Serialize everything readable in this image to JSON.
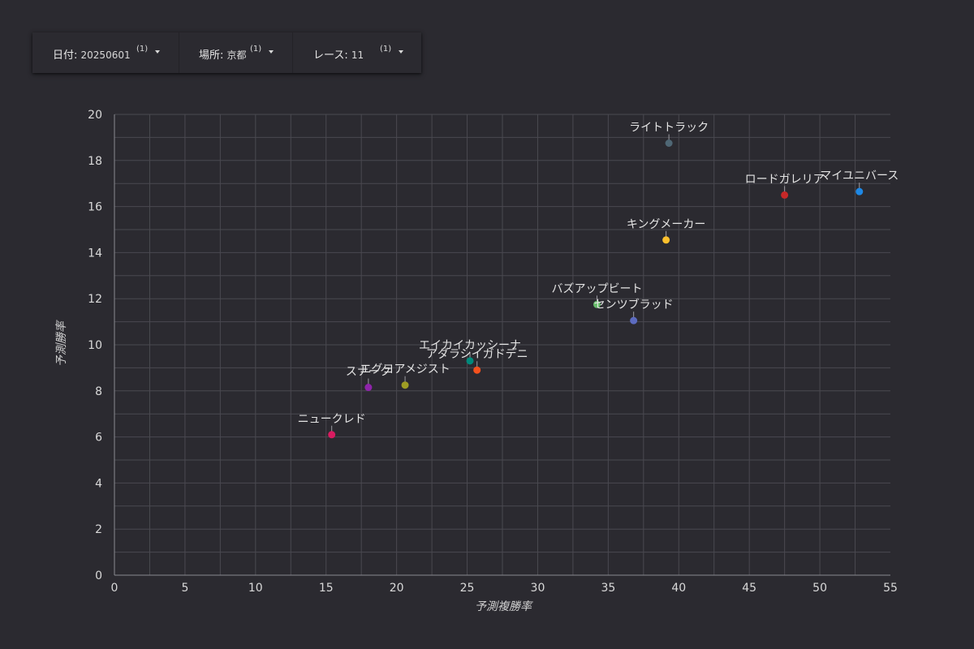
{
  "filters": [
    {
      "label": "日付",
      "value": "20250601",
      "count": "(1)"
    },
    {
      "label": "場所",
      "value": "京都",
      "count": "(1)"
    },
    {
      "label": "レース",
      "value": "11",
      "count": "(1)"
    }
  ],
  "chart_data": {
    "type": "scatter",
    "xlabel": "予測複勝率",
    "ylabel": "予測勝率",
    "xlim": [
      0,
      55
    ],
    "ylim": [
      0,
      20
    ],
    "xticks": [
      0,
      5,
      10,
      15,
      20,
      25,
      30,
      35,
      40,
      45,
      50,
      55
    ],
    "yticks": [
      0,
      2,
      4,
      6,
      8,
      10,
      12,
      14,
      16,
      18,
      20
    ],
    "grid": true,
    "legend": "none",
    "points": [
      {
        "name": "ライトトラック",
        "x": 39.3,
        "y": 18.75,
        "color": "#4f6775"
      },
      {
        "name": "マイユニバース",
        "x": 52.8,
        "y": 16.65,
        "color": "#1e88e5"
      },
      {
        "name": "ロードガレリア",
        "x": 47.5,
        "y": 16.5,
        "color": "#c62828"
      },
      {
        "name": "キングメーカー",
        "x": 39.1,
        "y": 14.55,
        "color": "#fbc02d"
      },
      {
        "name": "バズアップビート",
        "x": 34.2,
        "y": 11.75,
        "color": "#66bb6a"
      },
      {
        "name": "センツブラッド",
        "x": 36.8,
        "y": 11.05,
        "color": "#5c6bc0"
      },
      {
        "name": "エイカイカッシーナ",
        "x": 25.2,
        "y": 9.3,
        "color": "#00897b"
      },
      {
        "name": "アダラシイガドデニ",
        "x": 25.7,
        "y": 8.9,
        "color": "#f4511e"
      },
      {
        "name": "スナーク",
        "x": 18.0,
        "y": 8.15,
        "color": "#8e24aa"
      },
      {
        "name": "エグヨアメジスト",
        "x": 20.6,
        "y": 8.25,
        "color": "#9e9d24"
      },
      {
        "name": "ニュークレド",
        "x": 15.4,
        "y": 6.1,
        "color": "#d81b60"
      }
    ]
  }
}
